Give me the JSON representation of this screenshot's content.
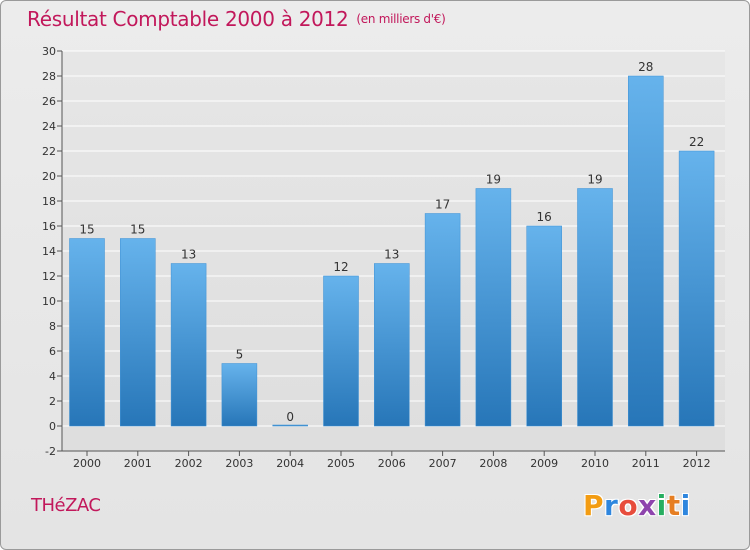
{
  "header": {
    "title": "Résultat Comptable 2000 à 2012",
    "unit": "(en milliers d'€)"
  },
  "footer": {
    "place": "THéZAC",
    "brand": "Proxiti",
    "brand_colors": [
      "#f39c12",
      "#2e86de",
      "#e74c3c",
      "#8e44ad",
      "#27ae60",
      "#e67e22",
      "#2e86de"
    ]
  },
  "colors": {
    "title": "#c2185b",
    "bar": "#4f9fdf",
    "bar_light": "#66b3ec",
    "bar_dark": "#2776b8",
    "grid": "#ffffff"
  },
  "chart_data": {
    "type": "bar",
    "categories": [
      "2000",
      "2001",
      "2002",
      "2003",
      "2004",
      "2005",
      "2006",
      "2007",
      "2008",
      "2009",
      "2010",
      "2011",
      "2012"
    ],
    "values": [
      15,
      15,
      13,
      5,
      0,
      12,
      13,
      17,
      19,
      16,
      19,
      28,
      22
    ],
    "yticks": [
      -2,
      0,
      2,
      4,
      6,
      8,
      10,
      12,
      14,
      16,
      18,
      20,
      22,
      24,
      26,
      28,
      30
    ],
    "ylim": [
      -2,
      30
    ],
    "grid": true,
    "xlabel": "",
    "ylabel": ""
  }
}
